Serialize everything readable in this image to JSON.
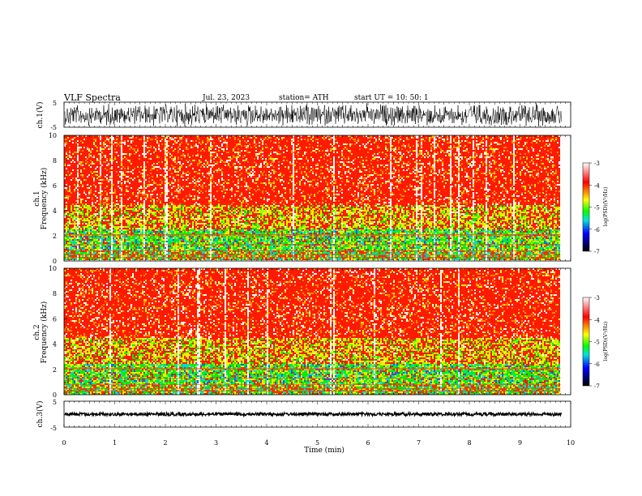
{
  "header": {
    "title": "VLF  Spectra",
    "date": "Jul.  23,  2023",
    "station": "station= ATH",
    "start": "start  UT  =    10: 50: 1"
  },
  "chart_data": [
    {
      "type": "line",
      "name": "ch1-waveform",
      "ylabel": "ch.1(V)",
      "ylim": [
        -5,
        5
      ],
      "yticks": [
        "5",
        "-5"
      ],
      "xlim": [
        0,
        10
      ],
      "description_values": {
        "amplitude_range": [
          -5,
          5
        ]
      }
    },
    {
      "type": "heatmap",
      "name": "ch1-spectrogram",
      "ylabel": "ch.1\nFrequency (kHz)",
      "ylabel_lines": [
        "ch.1",
        "Frequency (kHz)"
      ],
      "ylim": [
        0,
        10
      ],
      "yticks": [
        "0",
        "2",
        "4",
        "6",
        "8",
        "10"
      ],
      "xlim": [
        0,
        9.8
      ],
      "colorbar": {
        "label": "log(PSD)(V²/Hz)",
        "range": [
          -7,
          -3
        ],
        "ticks": [
          "-3",
          "-4",
          "-5",
          "-6",
          "-7"
        ]
      }
    },
    {
      "type": "heatmap",
      "name": "ch2-spectrogram",
      "ylabel_lines": [
        "ch.2",
        "Frequency (kHz)"
      ],
      "ylim": [
        0,
        10
      ],
      "yticks": [
        "0",
        "2",
        "4",
        "6",
        "8",
        "10"
      ],
      "xlim": [
        0,
        9.8
      ],
      "colorbar": {
        "label": "log(PSD)(V²/Hz)",
        "range": [
          -7,
          -3
        ],
        "ticks": [
          "-3",
          "-4",
          "-5",
          "-6",
          "-7"
        ]
      }
    },
    {
      "type": "line",
      "name": "ch3-waveform",
      "ylabel": "ch.3(V)",
      "ylim": [
        -5,
        5
      ],
      "yticks": [
        "5",
        "-5"
      ],
      "xlim": [
        0,
        10
      ],
      "xlabel": "Time  (min)",
      "xticks": [
        "0",
        "1",
        "2",
        "3",
        "4",
        "5",
        "6",
        "7",
        "8",
        "9",
        "10"
      ]
    }
  ]
}
